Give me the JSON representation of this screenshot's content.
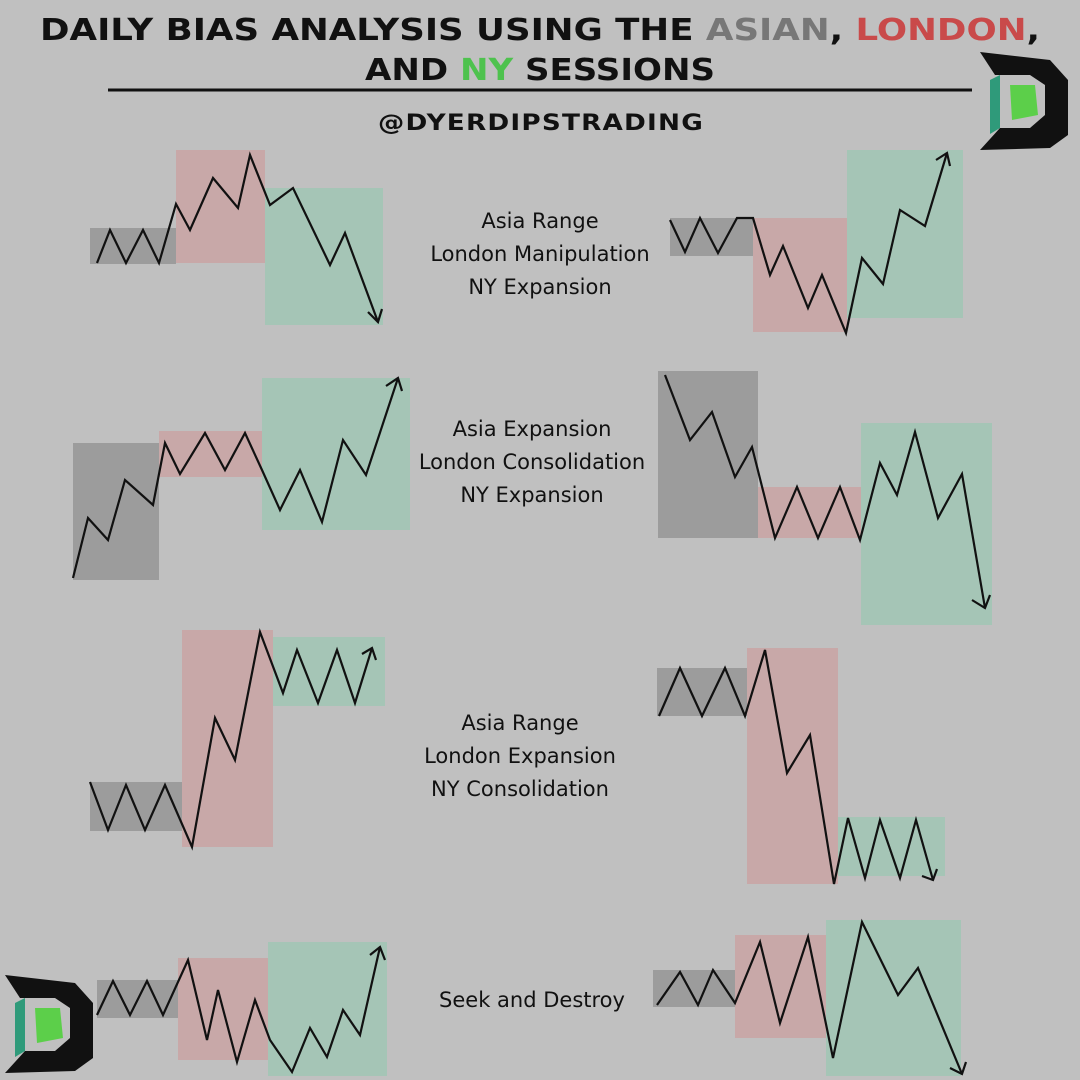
{
  "header": {
    "title_line1": [
      "DAILY BIAS ANALYSIS USING THE ",
      "ASIAN",
      ", ",
      "LONDON",
      ","
    ],
    "title_line2": [
      "AND ",
      "NY",
      " SESSIONS"
    ],
    "handle": "@DYERDIPSTRADING"
  },
  "panels": [
    {
      "lines": [
        "Asia Range",
        "London Manipulation",
        "NY Expansion"
      ]
    },
    {
      "lines": [
        "Asia Expansion",
        "London Consolidation",
        "NY Expansion"
      ]
    },
    {
      "lines": [
        "Asia Range",
        "London Expansion",
        "NY Consolidation"
      ]
    },
    {
      "lines": [
        "Seek and Destroy"
      ]
    }
  ]
}
